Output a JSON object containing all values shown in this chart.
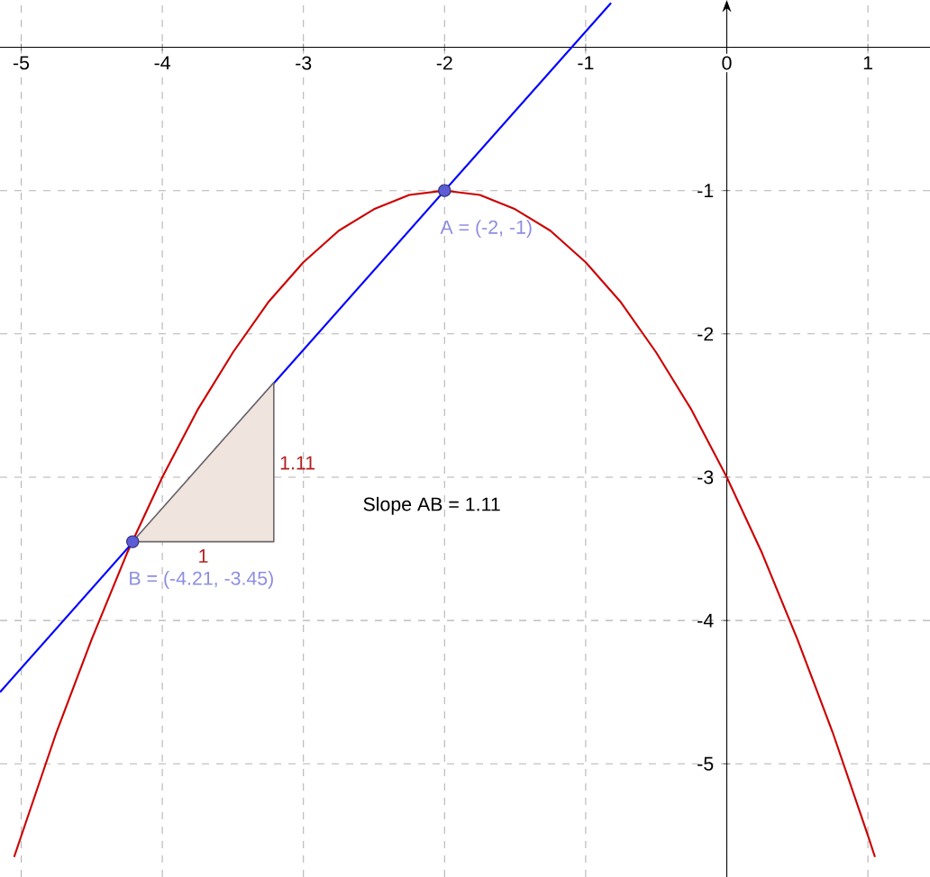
{
  "chart_data": {
    "type": "line",
    "xlim": [
      -5.15,
      1.44
    ],
    "ylim": [
      -5.79,
      0.33
    ],
    "xticks": [
      -5,
      -4,
      -3,
      -2,
      -1,
      0,
      1
    ],
    "yticks": [
      -5,
      -4,
      -3,
      -2,
      -1
    ],
    "grid": true,
    "series": [
      {
        "color": "#cc0000",
        "x": [
          -5.05,
          -4.75,
          -4.5,
          -4.25,
          -4,
          -3.75,
          -3.5,
          -3.25,
          -3,
          -2.75,
          -2.5,
          -2.25,
          -2,
          -1.75,
          -1.5,
          -1.25,
          -1,
          -0.75,
          -0.5,
          -0.25,
          0,
          0.25,
          0.5,
          0.75,
          1,
          1.05
        ],
        "values": [
          -5.65,
          -4.78,
          -4.13,
          -3.53,
          -3,
          -2.53,
          -2.13,
          -1.78,
          -1.5,
          -1.28,
          -1.13,
          -1.03,
          -1,
          -1.03,
          -1.13,
          -1.28,
          -1.5,
          -1.78,
          -2.13,
          -2.53,
          -3,
          -3.53,
          -4.13,
          -4.78,
          -5.5,
          -5.65
        ]
      },
      {
        "color": "#0000ff",
        "x": [
          -5.15,
          -0.82
        ],
        "values": [
          -4.5,
          0.31
        ]
      },
      {
        "type": "area",
        "color": "#f0e4de",
        "x": [
          -4.21,
          -3.21
        ],
        "values": [
          -3.45,
          -2.34
        ]
      },
      {
        "type": "scatter",
        "color": "#5c5cd6",
        "marker": "circle",
        "x": [
          -2,
          -4.21
        ],
        "values": [
          -1,
          -3.45
        ]
      }
    ],
    "annotations": [
      {
        "text": "A = (-2, -1)",
        "x": -2,
        "y": -1
      },
      {
        "text": "B = (-4.21, -3.45)",
        "x": -4.21,
        "y": -3.45
      },
      {
        "text": "1",
        "x": -3.71,
        "y": -3.45
      },
      "1.11",
      "Slope AB = 1.11"
    ]
  }
}
